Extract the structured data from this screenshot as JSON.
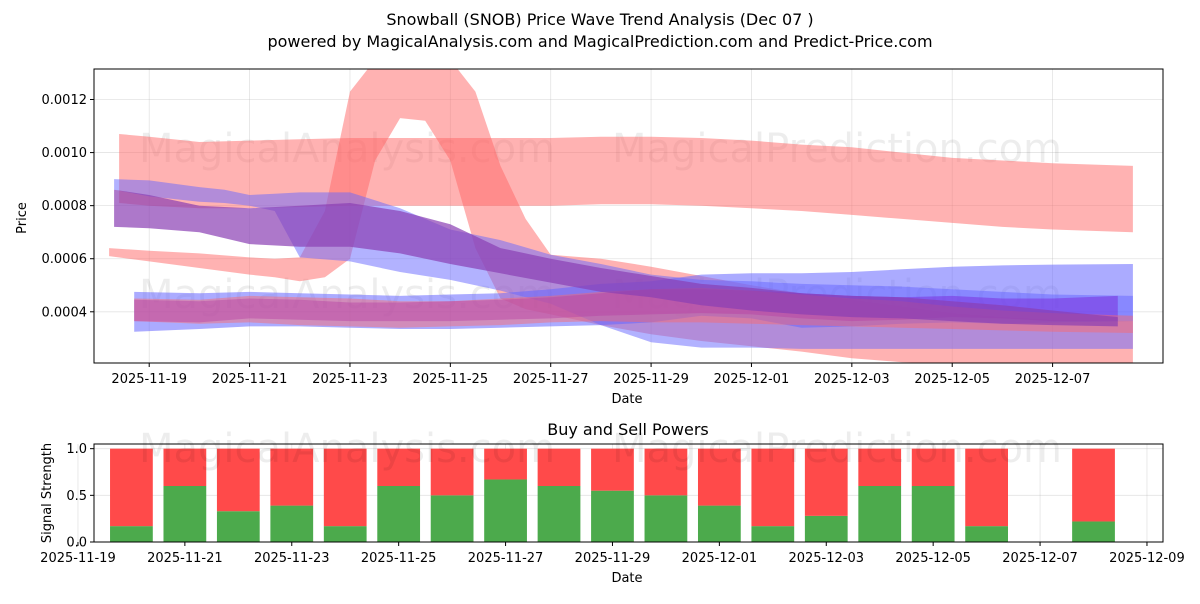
{
  "chart_data": [
    {
      "type": "area",
      "title": "Snowball (SNOB) Price Wave Trend Analysis (Dec 07 )",
      "subtitle": "powered by MagicalAnalysis.com and MagicalPrediction.com and Predict-Price.com",
      "xlabel": "Date",
      "ylabel": "Price",
      "xlim": [
        "2025-11-17.9",
        "2025-12-09.2"
      ],
      "ylim": [
        0.000207,
        0.001315
      ],
      "grid": true,
      "y_ticks": [
        0.0004,
        0.0006,
        0.0008,
        0.001,
        0.0012
      ],
      "y_tick_labels": [
        "0.0004",
        "0.0006",
        "0.0008",
        "0.0010",
        "0.0012"
      ],
      "x_ticks": [
        "2025-11-19",
        "2025-11-21",
        "2025-11-23",
        "2025-11-25",
        "2025-11-27",
        "2025-11-29",
        "2025-12-01",
        "2025-12-03",
        "2025-12-05",
        "2025-12-07"
      ],
      "watermarks": [
        "MagicalAnalysis.com",
        "MagicalPrediction.com"
      ],
      "series": [
        {
          "name": "red wave 1",
          "color": "#ff6666",
          "opacity": 0.5,
          "x": [
            18.4,
            19,
            20,
            21,
            22,
            23,
            24,
            25,
            26,
            27,
            28,
            29,
            30,
            31,
            32,
            33,
            34,
            35,
            36,
            37,
            38.6
          ],
          "upper": [
            0.00107,
            0.00106,
            0.00104,
            0.001045,
            0.00105,
            0.001055,
            0.001055,
            0.001055,
            0.001055,
            0.001055,
            0.00106,
            0.00106,
            0.001055,
            0.001045,
            0.00103,
            0.00102,
            0.001,
            0.00098,
            0.00097,
            0.00096,
            0.00095
          ],
          "lower": [
            0.00081,
            0.0008,
            0.00079,
            0.00079,
            0.000795,
            0.0008,
            0.0008,
            0.0008,
            0.0008,
            0.0008,
            0.000805,
            0.000805,
            0.0008,
            0.00079,
            0.00078,
            0.000765,
            0.00075,
            0.000735,
            0.00072,
            0.00071,
            0.0007
          ]
        },
        {
          "name": "red wave 2",
          "color": "#ff6666",
          "opacity": 0.5,
          "x": [
            18.2,
            19,
            20,
            21,
            21.5,
            22,
            22.5,
            23,
            23.5,
            24,
            24.5,
            25,
            25.5,
            26,
            26.5,
            27,
            28,
            29,
            30,
            31,
            32,
            33,
            34,
            35,
            36,
            37,
            38.6
          ],
          "upper": [
            0.00064,
            0.00063,
            0.00062,
            0.000605,
            0.0006,
            0.000605,
            0.00078,
            0.00123,
            0.00135,
            0.00135,
            0.00135,
            0.00135,
            0.00123,
            0.00095,
            0.00075,
            0.000615,
            0.0006,
            0.00057,
            0.000535,
            0.0005,
            0.00047,
            0.000445,
            0.00042,
            0.000395,
            0.00038,
            0.00037,
            0.000365
          ],
          "lower": [
            0.00061,
            0.00059,
            0.000565,
            0.00054,
            0.00053,
            0.000515,
            0.00053,
            0.0006,
            0.00097,
            0.00113,
            0.00112,
            0.00097,
            0.00064,
            0.00045,
            0.00041,
            0.00039,
            0.00035,
            0.000315,
            0.00029,
            0.00027,
            0.00025,
            0.000225,
            0.00021,
            0.000205,
            0.000205,
            0.000205,
            0.000205
          ]
        },
        {
          "name": "blue wave 1",
          "color": "#6666ff",
          "opacity": 0.5,
          "x": [
            18.3,
            19,
            20,
            20.5,
            21,
            21.5,
            22,
            23,
            24,
            25,
            26,
            27,
            28,
            29,
            30,
            31,
            32,
            33,
            34,
            35,
            36,
            37,
            38.6
          ],
          "upper": [
            0.0009,
            0.000895,
            0.00087,
            0.00086,
            0.00084,
            0.000845,
            0.00085,
            0.00085,
            0.00079,
            0.00071,
            0.00067,
            0.000615,
            0.00058,
            0.00054,
            0.00052,
            0.000515,
            0.000505,
            0.0005,
            0.000495,
            0.000485,
            0.000475,
            0.000465,
            0.00046
          ],
          "lower": [
            0.00086,
            0.000835,
            0.000815,
            0.00081,
            0.0008,
            0.00078,
            0.000605,
            0.00059,
            0.00055,
            0.00052,
            0.00048,
            0.00043,
            0.00035,
            0.000285,
            0.000265,
            0.000265,
            0.00026,
            0.00026,
            0.00026,
            0.00026,
            0.00026,
            0.00026,
            0.00026
          ]
        },
        {
          "name": "blue band",
          "color": "#6666ff",
          "opacity": 0.55,
          "x": [
            18.7,
            20,
            21,
            22,
            23,
            24,
            25,
            26,
            27,
            28,
            29,
            30,
            31,
            32,
            33,
            34,
            35,
            36,
            37,
            38.6
          ],
          "upper": [
            0.000475,
            0.00047,
            0.000475,
            0.00047,
            0.000465,
            0.00046,
            0.000465,
            0.00047,
            0.000485,
            0.000505,
            0.000515,
            0.00054,
            0.000545,
            0.000545,
            0.00055,
            0.00056,
            0.00057,
            0.000575,
            0.000578,
            0.00058
          ],
          "lower": [
            0.000325,
            0.000335,
            0.000345,
            0.000345,
            0.00034,
            0.000335,
            0.000335,
            0.00034,
            0.000345,
            0.00035,
            0.00036,
            0.000385,
            0.000375,
            0.00034,
            0.000345,
            0.000355,
            0.00036,
            0.000355,
            0.00036,
            0.000365
          ]
        },
        {
          "name": "purple core",
          "color": "#7a1fd6",
          "opacity": 0.45,
          "x": [
            18.7,
            20,
            21,
            22,
            23,
            24,
            25,
            26,
            27,
            28,
            29,
            30,
            31,
            32,
            33,
            34,
            35,
            36,
            37,
            38.3
          ],
          "upper": [
            0.000445,
            0.00044,
            0.00045,
            0.000445,
            0.000435,
            0.000435,
            0.00044,
            0.000445,
            0.000455,
            0.00047,
            0.000485,
            0.000485,
            0.00048,
            0.00047,
            0.00046,
            0.000455,
            0.00046,
            0.00045,
            0.00045,
            0.00046
          ],
          "lower": [
            0.000365,
            0.00036,
            0.000375,
            0.00037,
            0.000365,
            0.000365,
            0.000365,
            0.00037,
            0.000375,
            0.000385,
            0.00039,
            0.000395,
            0.00039,
            0.000375,
            0.000365,
            0.00037,
            0.00038,
            0.000375,
            0.000365,
            0.000365
          ]
        },
        {
          "name": "red band",
          "color": "#ff6666",
          "opacity": 0.45,
          "x": [
            18.7,
            20,
            21,
            22,
            23,
            24,
            25,
            26,
            27,
            28,
            29,
            30,
            31,
            32,
            33,
            34,
            35,
            36,
            37,
            38.6
          ],
          "upper": [
            0.00045,
            0.000445,
            0.00046,
            0.000455,
            0.00045,
            0.00044,
            0.00044,
            0.00045,
            0.00046,
            0.000475,
            0.000485,
            0.00049,
            0.00048,
            0.000465,
            0.00045,
            0.00044,
            0.00042,
            0.000405,
            0.000395,
            0.000385
          ],
          "lower": [
            0.000365,
            0.000355,
            0.00036,
            0.00035,
            0.000345,
            0.00034,
            0.000345,
            0.00035,
            0.00036,
            0.000365,
            0.00036,
            0.00036,
            0.000355,
            0.00035,
            0.000345,
            0.00034,
            0.000335,
            0.00033,
            0.000325,
            0.00032
          ]
        },
        {
          "name": "purple line",
          "color": "#8a3fb4",
          "opacity": 0.7,
          "x": [
            18.3,
            19,
            20,
            21,
            22,
            23,
            24,
            25,
            26,
            27,
            28,
            29,
            30,
            31,
            32,
            33,
            34,
            35,
            36,
            37,
            38.3
          ],
          "upper": [
            0.00086,
            0.00084,
            0.0008,
            0.00079,
            0.0008,
            0.00081,
            0.00078,
            0.00073,
            0.00064,
            0.0006,
            0.000565,
            0.000535,
            0.000505,
            0.00049,
            0.00047,
            0.00046,
            0.000455,
            0.00044,
            0.000425,
            0.000405,
            0.00038
          ],
          "lower": [
            0.00072,
            0.000715,
            0.0007,
            0.000655,
            0.000645,
            0.000645,
            0.00062,
            0.00058,
            0.000545,
            0.00051,
            0.000475,
            0.000455,
            0.000425,
            0.000405,
            0.00039,
            0.00038,
            0.000375,
            0.000365,
            0.000355,
            0.00035,
            0.000345
          ]
        }
      ]
    },
    {
      "type": "bar",
      "title": "Buy and Sell Powers",
      "xlabel": "Date",
      "ylabel": "Signal Strength",
      "ylim": [
        0,
        1.05
      ],
      "xlim": [
        "2025-11-19.3",
        "2025-12-09.3"
      ],
      "grid": true,
      "y_ticks": [
        0,
        0.5,
        1
      ],
      "y_tick_labels": [
        "0.0",
        "0.5",
        "1.0"
      ],
      "x_ticks": [
        "2025-11-19",
        "2025-11-21",
        "2025-11-23",
        "2025-11-25",
        "2025-11-27",
        "2025-11-29",
        "2025-12-01",
        "2025-12-03",
        "2025-12-05",
        "2025-12-07",
        "2025-12-09"
      ],
      "categories": [
        "2025-11-20",
        "2025-11-21",
        "2025-11-22",
        "2025-11-23",
        "2025-11-24",
        "2025-11-25",
        "2025-11-26",
        "2025-11-27",
        "2025-11-28",
        "2025-11-29",
        "2025-11-30",
        "2025-12-01",
        "2025-12-02",
        "2025-12-03",
        "2025-12-04",
        "2025-12-05",
        "2025-12-06",
        "2025-12-08"
      ],
      "series": [
        {
          "name": "Buy",
          "color": "#4caa4c",
          "values": [
            0.17,
            0.6,
            0.33,
            0.39,
            0.17,
            0.6,
            0.5,
            0.67,
            0.6,
            0.55,
            0.5,
            0.39,
            0.17,
            0.28,
            0.6,
            0.6,
            0.17,
            0.22
          ]
        },
        {
          "name": "Sell",
          "color": "#ff4a4a",
          "values": [
            0.83,
            0.4,
            0.67,
            0.61,
            0.83,
            0.4,
            0.5,
            0.33,
            0.4,
            0.45,
            0.5,
            0.61,
            0.83,
            0.72,
            0.4,
            0.4,
            0.83,
            0.78
          ]
        }
      ],
      "watermarks": [
        "MagicalAnalysis.com",
        "MagicalPrediction.com"
      ]
    }
  ]
}
